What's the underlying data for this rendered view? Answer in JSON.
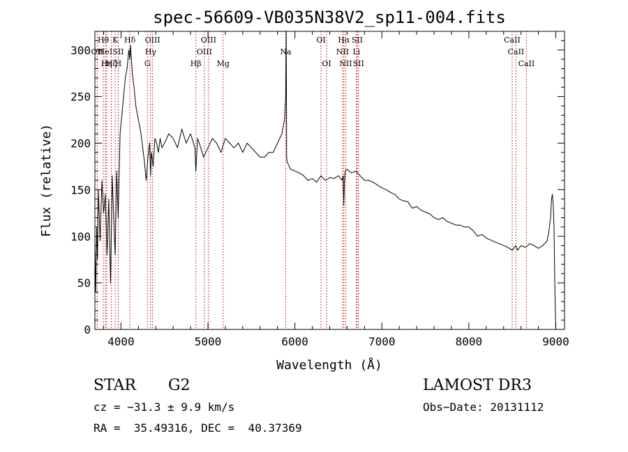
{
  "chart_data": {
    "type": "line",
    "title": "spec-56609-VB035N38V2_sp11-004.fits",
    "xlabel": "Wavelength (Å)",
    "ylabel": "Flux (relative)",
    "xlim": [
      3700,
      9100
    ],
    "ylim": [
      0,
      320
    ],
    "x_ticks": [
      4000,
      5000,
      6000,
      7000,
      8000,
      9000
    ],
    "y_ticks": [
      0,
      50,
      100,
      150,
      200,
      250,
      300
    ],
    "grid": false,
    "line_color": "#000000",
    "marker_color": "#c00000",
    "spectrum": {
      "x": [
        3700,
        3710,
        3720,
        3730,
        3740,
        3760,
        3780,
        3800,
        3820,
        3840,
        3860,
        3880,
        3900,
        3920,
        3933,
        3950,
        3968,
        3990,
        4010,
        4030,
        4050,
        4070,
        4090,
        4102,
        4110,
        4130,
        4150,
        4170,
        4190,
        4210,
        4230,
        4250,
        4270,
        4290,
        4310,
        4330,
        4340,
        4350,
        4370,
        4390,
        4410,
        4430,
        4450,
        4470,
        4500,
        4550,
        4600,
        4650,
        4700,
        4750,
        4800,
        4850,
        4861,
        4880,
        4900,
        4950,
        5000,
        5050,
        5100,
        5150,
        5200,
        5250,
        5300,
        5350,
        5400,
        5450,
        5500,
        5550,
        5600,
        5650,
        5700,
        5750,
        5800,
        5850,
        5880,
        5894,
        5900,
        5905,
        5910,
        5920,
        5950,
        6000,
        6050,
        6100,
        6150,
        6200,
        6250,
        6300,
        6350,
        6400,
        6450,
        6500,
        6540,
        6555,
        6562,
        6570,
        6580,
        6600,
        6650,
        6700,
        6750,
        6800,
        6850,
        6900,
        6950,
        7000,
        7050,
        7100,
        7150,
        7200,
        7250,
        7300,
        7350,
        7400,
        7450,
        7500,
        7550,
        7600,
        7650,
        7700,
        7750,
        7800,
        7850,
        7900,
        7950,
        8000,
        8050,
        8100,
        8150,
        8200,
        8250,
        8300,
        8350,
        8400,
        8450,
        8500,
        8540,
        8560,
        8600,
        8650,
        8700,
        8750,
        8800,
        8850,
        8880,
        8900,
        8920,
        8940,
        8950,
        8960,
        8970,
        8980,
        8990,
        9000
      ],
      "y": [
        90,
        40,
        110,
        75,
        150,
        95,
        160,
        125,
        145,
        80,
        140,
        50,
        165,
        110,
        80,
        170,
        120,
        210,
        230,
        250,
        270,
        280,
        300,
        290,
        305,
        275,
        260,
        240,
        230,
        220,
        210,
        195,
        180,
        160,
        185,
        200,
        165,
        190,
        175,
        205,
        200,
        190,
        205,
        195,
        200,
        210,
        205,
        195,
        215,
        200,
        210,
        195,
        170,
        205,
        200,
        185,
        195,
        205,
        200,
        190,
        205,
        200,
        195,
        200,
        190,
        200,
        195,
        190,
        185,
        185,
        190,
        190,
        200,
        210,
        225,
        250,
        320,
        185,
        180,
        178,
        172,
        170,
        168,
        165,
        160,
        162,
        158,
        165,
        160,
        163,
        162,
        165,
        160,
        165,
        133,
        160,
        170,
        172,
        168,
        170,
        165,
        160,
        160,
        158,
        155,
        152,
        150,
        147,
        145,
        140,
        138,
        137,
        130,
        132,
        128,
        126,
        124,
        120,
        118,
        120,
        116,
        114,
        112,
        112,
        110,
        110,
        106,
        100,
        102,
        98,
        96,
        94,
        92,
        90,
        88,
        85,
        90,
        85,
        90,
        88,
        92,
        90,
        87,
        90,
        93,
        95,
        105,
        120,
        140,
        145,
        135,
        110,
        40,
        0
      ]
    },
    "lines": [
      {
        "label": "Hθ",
        "x": 3797,
        "row": 1,
        "stag": 0
      },
      {
        "label": "OII",
        "x": 3727,
        "row": 2,
        "stag": 0
      },
      {
        "label": "HeI",
        "x": 3820,
        "row": 2,
        "stag": 1
      },
      {
        "label": "Hη",
        "x": 3835,
        "row": 3,
        "stag": 0
      },
      {
        "label": "Hζ",
        "x": 3889,
        "row": 3,
        "stag": 1
      },
      {
        "label": "K",
        "x": 3934,
        "row": 1,
        "stag": 1
      },
      {
        "label": "SII",
        "x": 3968,
        "row": 2,
        "stag": 2
      },
      {
        "label": "H",
        "x": 3968,
        "row": 3,
        "stag": 2
      },
      {
        "label": "Hδ",
        "x": 4102,
        "row": 1,
        "stag": 2
      },
      {
        "label": "OIII",
        "x": 4363,
        "row": 1,
        "stag": 3
      },
      {
        "label": "Hγ",
        "x": 4341,
        "row": 2,
        "stag": 3
      },
      {
        "label": "G",
        "x": 4304,
        "row": 3,
        "stag": 3
      },
      {
        "label": "OIII",
        "x": 5007,
        "row": 1,
        "stag": 4
      },
      {
        "label": "OIII",
        "x": 4959,
        "row": 2,
        "stag": 4
      },
      {
        "label": "Hβ",
        "x": 4861,
        "row": 3,
        "stag": 4
      },
      {
        "label": "Mg",
        "x": 5175,
        "row": 3,
        "stag": 5
      },
      {
        "label": "Na",
        "x": 5894,
        "row": 2,
        "stag": 6
      },
      {
        "label": "OI",
        "x": 6300,
        "row": 1,
        "stag": 7
      },
      {
        "label": "OI",
        "x": 6364,
        "row": 3,
        "stag": 7
      },
      {
        "label": "Hα",
        "x": 6563,
        "row": 1,
        "stag": 8
      },
      {
        "label": "NII",
        "x": 6548,
        "row": 2,
        "stag": 8
      },
      {
        "label": "NII",
        "x": 6584,
        "row": 3,
        "stag": 8
      },
      {
        "label": "SII",
        "x": 6716,
        "row": 1,
        "stag": 9
      },
      {
        "label": "Li",
        "x": 6707,
        "row": 2,
        "stag": 9
      },
      {
        "label": "SII",
        "x": 6731,
        "row": 3,
        "stag": 9
      },
      {
        "label": "CaII",
        "x": 8498,
        "row": 1,
        "stag": 10
      },
      {
        "label": "CaII",
        "x": 8542,
        "row": 2,
        "stag": 10
      },
      {
        "label": "CaII",
        "x": 8662,
        "row": 3,
        "stag": 10
      }
    ]
  },
  "info": {
    "class": "STAR",
    "subclass": "G2",
    "survey": "LAMOST DR3",
    "cz": "cz = −31.3 ± 9.9 km/s",
    "obs_date": "Obs−Date: 20131112",
    "coords": "RA =  35.49316, DEC =  40.37369"
  }
}
